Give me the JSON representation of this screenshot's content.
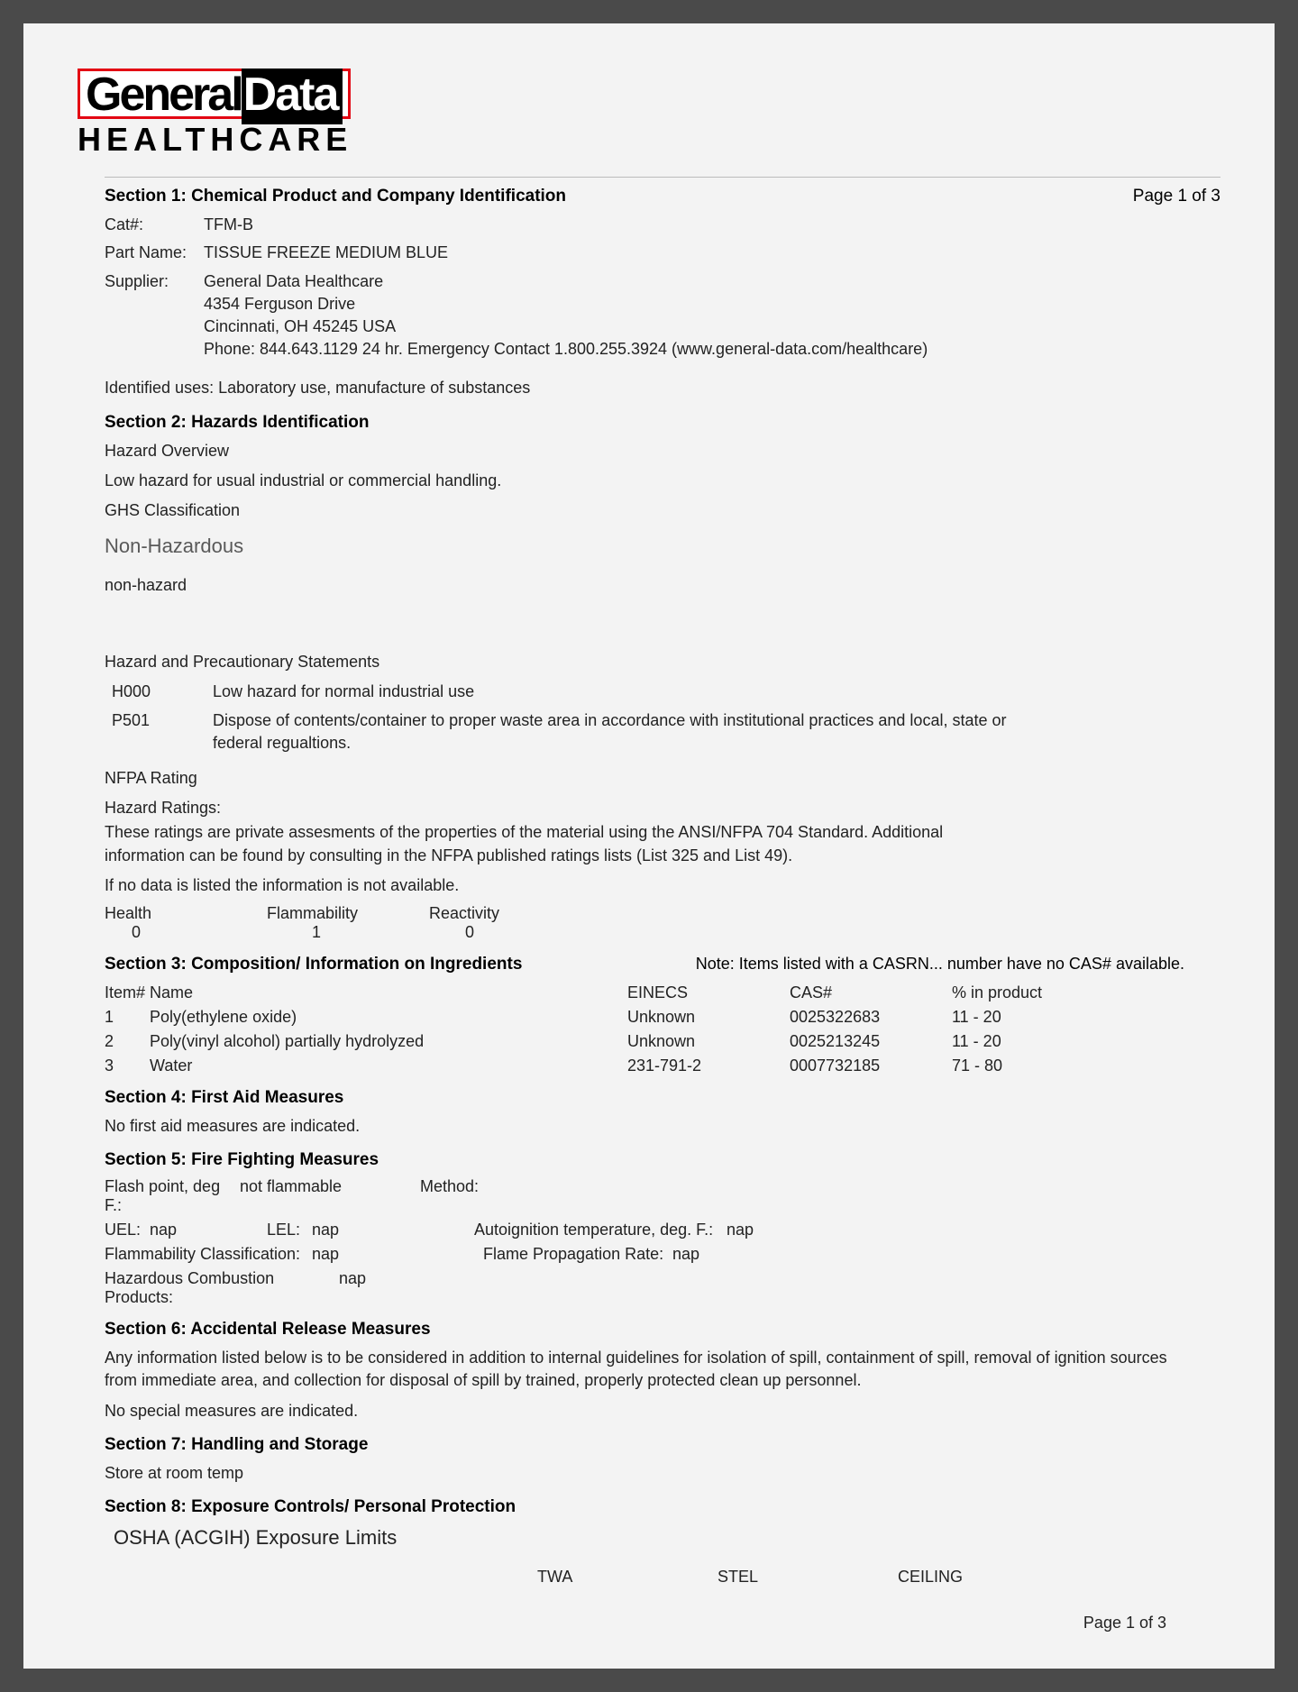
{
  "logo": {
    "part1": "General",
    "part2": "Data",
    "sub": "HEALTHCARE"
  },
  "pageinfo_top": "Page 1 of 3",
  "section1": {
    "title": "Section 1: Chemical Product and Company Identification",
    "cat_label": "Cat#:",
    "cat_value": "TFM-B",
    "partname_label": "Part Name:",
    "partname_value": "TISSUE FREEZE MEDIUM BLUE",
    "supplier_label": "Supplier:",
    "supplier_line1": "General Data Healthcare",
    "supplier_line2": "4354 Ferguson Drive",
    "supplier_line3": "Cincinnati, OH 45245 USA",
    "supplier_line4": "Phone: 844.643.1129   24 hr. Emergency Contact 1.800.255.3924  (www.general-data.com/healthcare)",
    "uses": "Identified uses: Laboratory use, manufacture of substances"
  },
  "section2": {
    "title": "Section 2: Hazards Identification",
    "overview_label": "Hazard Overview",
    "overview_text": "Low hazard for usual industrial or commercial handling.",
    "ghs_label": "GHS Classification",
    "ghs_class": "Non-Hazardous",
    "nonhaz": "non-hazard",
    "statements_label": "Hazard and Precautionary Statements",
    "h000_code": "H000",
    "h000_text": "Low hazard for normal industrial use",
    "p501_code": "P501",
    "p501_text": "Dispose of contents/container to proper waste area in accordance with institutional practices and local, state or federal regualtions.",
    "nfpa_label": "NFPA Rating",
    "ratings_label": "Hazard Ratings:",
    "ratings_text": "These ratings are private assesments of the properties of the material using the ANSI/NFPA 704 Standard.  Additional information can be found by consulting in the NFPA published ratings lists (List 325 and List 49).",
    "nodata": "If no data is listed the information is not available.",
    "health_label": "Health",
    "health_val": "0",
    "flamm_label": "Flammability",
    "flamm_val": "1",
    "react_label": "Reactivity",
    "react_val": "0"
  },
  "section3": {
    "title": "Section 3: Composition/ Information on Ingredients",
    "note": "Note: Items listed with a CASRN... number have no CAS# available.",
    "head_item": "Item#",
    "head_name": "Name",
    "head_einecs": "EINECS",
    "head_cas": "CAS#",
    "head_pct": "%  in product",
    "rows": [
      {
        "n": "1",
        "name": "Poly(ethylene oxide)",
        "einecs": "Unknown",
        "cas": "0025322683",
        "pct": "11 - 20"
      },
      {
        "n": "2",
        "name": "Poly(vinyl alcohol) partially hydrolyzed",
        "einecs": "Unknown",
        "cas": "0025213245",
        "pct": "11 - 20"
      },
      {
        "n": "3",
        "name": "Water",
        "einecs": "231-791-2",
        "cas": "0007732185",
        "pct": "71 - 80"
      }
    ]
  },
  "section4": {
    "title": "Section 4: First Aid Measures",
    "text": "No first aid measures are indicated."
  },
  "section5": {
    "title": "Section 5: Fire Fighting Measures",
    "flash_label": "Flash point, deg F.:",
    "flash_val": "not flammable",
    "method_label": "Method:",
    "uel_label": "UEL:",
    "uel_val": "nap",
    "lel_label": "LEL:",
    "lel_val": "nap",
    "auto_label": "Autoignition temperature, deg. F.:",
    "auto_val": "nap",
    "flammclass_label": "Flammability  Classification:",
    "flammclass_val": "nap",
    "flameprop_label": "Flame Propagation  Rate:",
    "flameprop_val": "nap",
    "hazprod_label": "Hazardous Combustion Products:",
    "hazprod_val": "nap"
  },
  "section6": {
    "title": "Section 6: Accidental Release Measures",
    "text1": "Any information listed below is to be considered in addition to internal guidelines for isolation of spill, containment of spill, removal of ignition sources from immediate area,  and collection for disposal of spill by  trained, properly protected clean up personnel.",
    "text2": "No special measures are indicated."
  },
  "section7": {
    "title": "Section 7: Handling and Storage",
    "text": "Store at room temp"
  },
  "section8": {
    "title": "Section 8: Exposure Controls/ Personal Protection",
    "osha": "OSHA (ACGIH) Exposure Limits",
    "twa": "TWA",
    "stel": "STEL",
    "ceiling": "CEILING"
  },
  "pageinfo_bottom": "Page 1 of 3"
}
